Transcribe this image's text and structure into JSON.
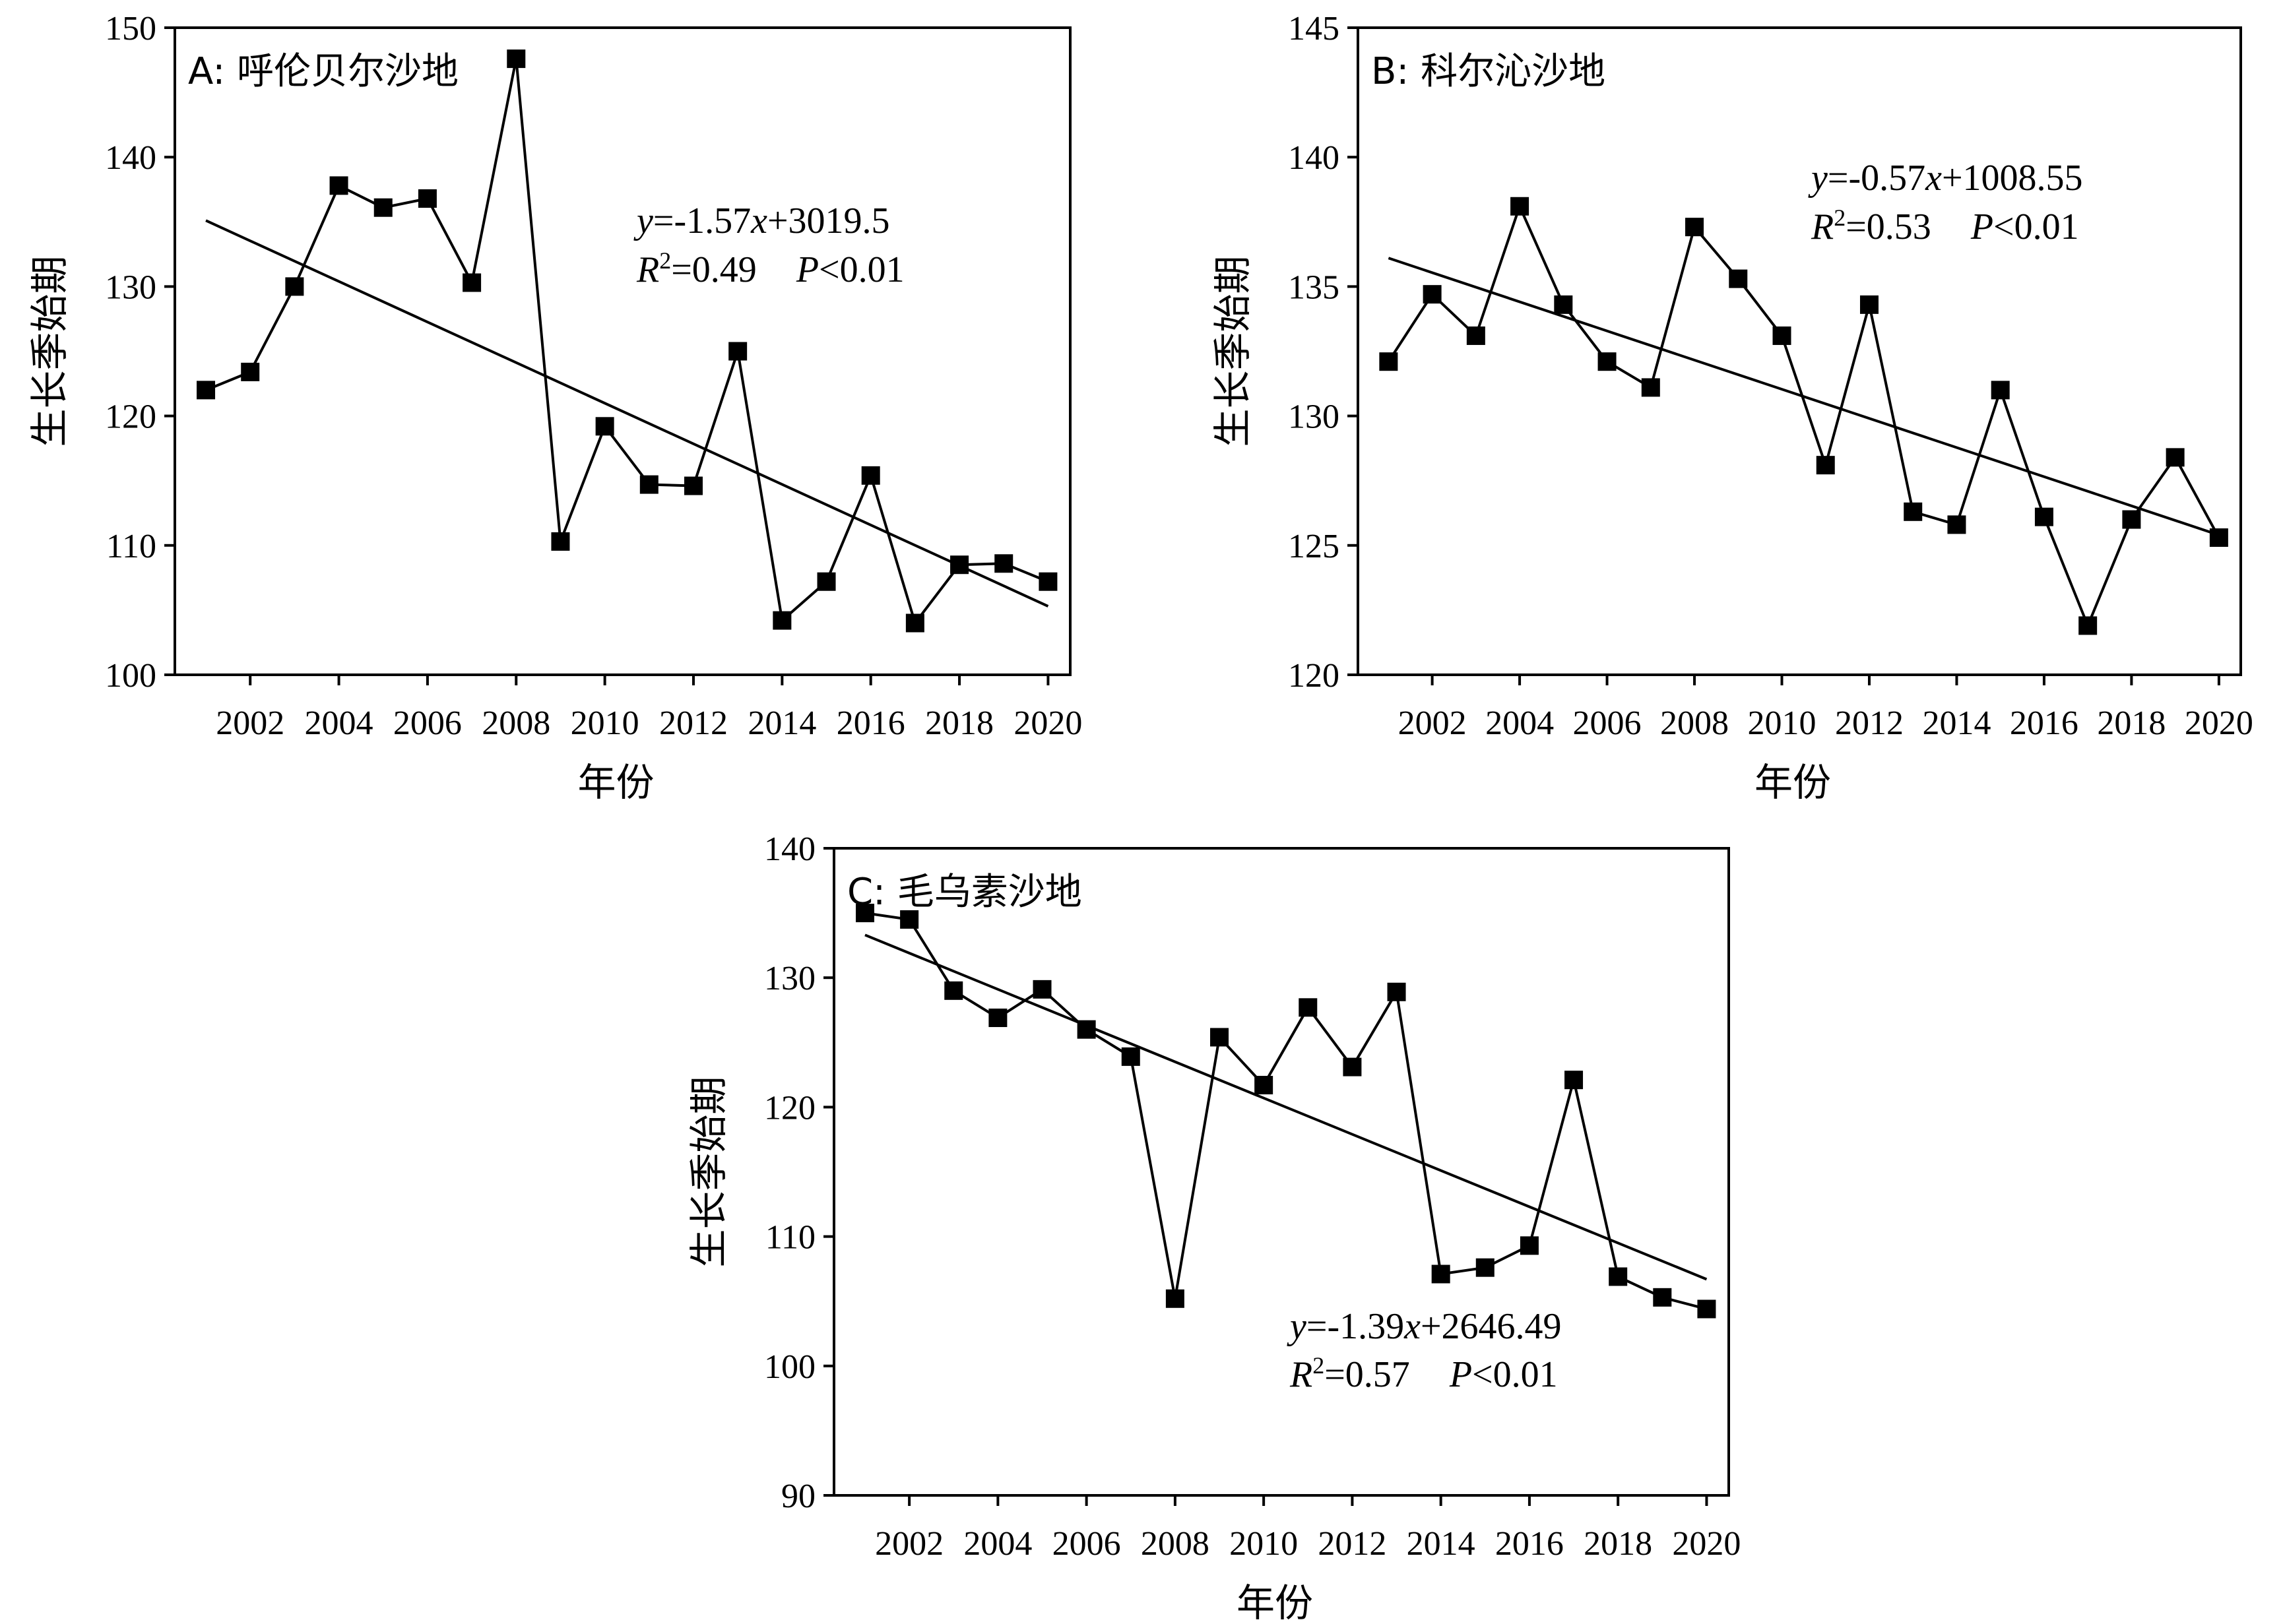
{
  "figure": {
    "xlabel": "年份",
    "ylabel": "生长季始期"
  },
  "colors": {
    "line": "#000000",
    "marker": "#000000",
    "background": "#ffffff"
  },
  "chart_data": [
    {
      "type": "line",
      "title": "A: 呼伦贝尔沙地",
      "xlabel": "年份",
      "ylabel": "生长季始期",
      "xlim": [
        2000.3,
        2020.5
      ],
      "ylim": [
        100,
        150
      ],
      "x_ticks": [
        "2002",
        "2004",
        "2006",
        "2008",
        "2010",
        "2012",
        "2014",
        "2016",
        "2018",
        "2020"
      ],
      "y_ticks": [
        "100",
        "110",
        "120",
        "130",
        "140",
        "150"
      ],
      "series": [
        {
          "x": [
            2001,
            2002,
            2003,
            2004,
            2005,
            2006,
            2007,
            2008,
            2009,
            2010,
            2011,
            2012,
            2013,
            2014,
            2015,
            2016,
            2017,
            2018,
            2019,
            2020
          ],
          "values": [
            122,
            123.4,
            130,
            137.8,
            136.1,
            136.8,
            130.3,
            147.6,
            110.3,
            119.2,
            114.7,
            114.6,
            125,
            104.2,
            107.2,
            115.4,
            104,
            108.5,
            108.6,
            107.2
          ]
        }
      ],
      "trend": {
        "x": [
          2001,
          2020
        ],
        "y": [
          135.1,
          105.3
        ]
      },
      "equation": {
        "y": "y",
        "eq": "=-1.57",
        "x": "x",
        "rest": "+3019.5"
      },
      "stats": {
        "r": "R",
        "r_sup": "2",
        "r_val": "=0.49",
        "p": "P",
        "p_val": "<0.01"
      }
    },
    {
      "type": "line",
      "title": "B: 科尔沁沙地",
      "xlabel": "年份",
      "ylabel": "生长季始期",
      "xlim": [
        2000.3,
        2020.5
      ],
      "ylim": [
        120,
        145
      ],
      "x_ticks": [
        "2002",
        "2004",
        "2006",
        "2008",
        "2010",
        "2012",
        "2014",
        "2016",
        "2018",
        "2020"
      ],
      "y_ticks": [
        "120",
        "125",
        "130",
        "135",
        "140",
        "145"
      ],
      "series": [
        {
          "x": [
            2001,
            2002,
            2003,
            2004,
            2005,
            2006,
            2007,
            2008,
            2009,
            2010,
            2011,
            2012,
            2013,
            2014,
            2015,
            2016,
            2017,
            2018,
            2019,
            2020
          ],
          "values": [
            132.1,
            134.7,
            133.1,
            138.1,
            134.3,
            132.1,
            131.1,
            137.3,
            135.3,
            133.1,
            128.1,
            134.3,
            126.3,
            125.8,
            131,
            126.1,
            121.9,
            126,
            128.4,
            125.3
          ]
        }
      ],
      "trend": {
        "x": [
          2001,
          2020
        ],
        "y": [
          136.1,
          125.4
        ]
      },
      "equation": {
        "y": "y",
        "eq": "=-0.57",
        "x": "x",
        "rest": "+1008.55"
      },
      "stats": {
        "r": "R",
        "r_sup": "2",
        "r_val": "=0.53",
        "p": "P",
        "p_val": "<0.01"
      }
    },
    {
      "type": "line",
      "title": "C: 毛乌素沙地",
      "xlabel": "年份",
      "ylabel": "生长季始期",
      "xlim": [
        2000.3,
        2020.5
      ],
      "ylim": [
        90,
        140
      ],
      "x_ticks": [
        "2002",
        "2004",
        "2006",
        "2008",
        "2010",
        "2012",
        "2014",
        "2016",
        "2018",
        "2020"
      ],
      "y_ticks": [
        "90",
        "100",
        "110",
        "120",
        "130",
        "140"
      ],
      "series": [
        {
          "x": [
            2001,
            2002,
            2003,
            2004,
            2005,
            2006,
            2007,
            2008,
            2009,
            2010,
            2011,
            2012,
            2013,
            2014,
            2015,
            2016,
            2017,
            2018,
            2019,
            2020
          ],
          "values": [
            135,
            134.5,
            129,
            126.9,
            129.1,
            126,
            123.9,
            105.2,
            125.4,
            121.7,
            127.7,
            123.1,
            128.9,
            107.1,
            107.6,
            109.3,
            122.1,
            106.9,
            105.3,
            104.4
          ]
        }
      ],
      "trend": {
        "x": [
          2001,
          2020
        ],
        "y": [
          133.3,
          106.7
        ]
      },
      "equation": {
        "y": "y",
        "eq": "=-1.39",
        "x": "x",
        "rest": "+2646.49"
      },
      "stats": {
        "r": "R",
        "r_sup": "2",
        "r_val": "=0.57",
        "p": "P",
        "p_val": "<0.01"
      }
    }
  ]
}
